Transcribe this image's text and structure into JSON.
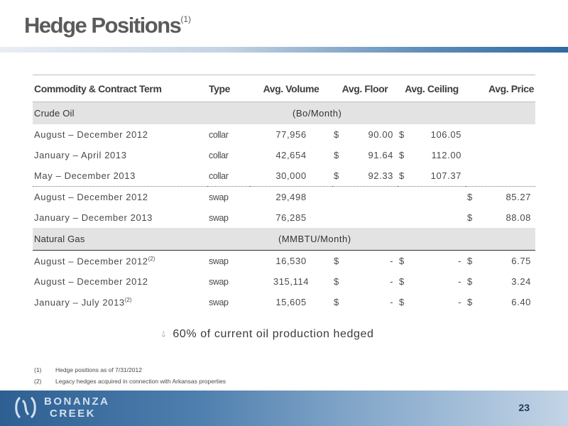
{
  "title": {
    "text": "Hedge Positions",
    "sup": "(1)"
  },
  "table": {
    "headers": [
      "Commodity & Contract Term",
      "Type",
      "Avg. Volume",
      "Avg. Floor",
      "Avg. Ceiling",
      "Avg. Price"
    ],
    "crude": {
      "label": "Crude Oil",
      "unit": "(Bo/Month)",
      "rows": [
        {
          "term": "August – December 2012",
          "type": "collar",
          "volume": "77,956",
          "floor": "90.00",
          "ceiling": "106.05",
          "price": ""
        },
        {
          "term": "January – April 2013",
          "type": "collar",
          "volume": "42,654",
          "floor": "91.64",
          "ceiling": "112.00",
          "price": ""
        },
        {
          "term": "May – December 2013",
          "type": "collar",
          "volume": "30,000",
          "floor": "92.33",
          "ceiling": "107.37",
          "price": ""
        },
        {
          "term": "August – December 2012",
          "type": "swap",
          "volume": "29,498",
          "floor": "",
          "ceiling": "",
          "price": "85.27"
        },
        {
          "term": "January – December 2013",
          "type": "swap",
          "volume": "76,285",
          "floor": "",
          "ceiling": "",
          "price": "88.08"
        }
      ]
    },
    "gas": {
      "label": "Natural Gas",
      "unit": "(MMBTU/Month)",
      "rows": [
        {
          "term": "August – December 2012",
          "term_sup": "(2)",
          "type": "swap",
          "volume": "16,530",
          "floor": "-",
          "ceiling": "-",
          "price": "6.75"
        },
        {
          "term": "August – December 2012",
          "term_sup": "",
          "type": "swap",
          "volume": "315,114",
          "floor": "-",
          "ceiling": "-",
          "price": "3.24"
        },
        {
          "term": "January – July 2013",
          "term_sup": "(2)",
          "type": "swap",
          "volume": "15,605",
          "floor": "-",
          "ceiling": "-",
          "price": "6.40"
        }
      ]
    },
    "currency_symbol": "$"
  },
  "bullet": {
    "icon": "oil-drop-icon",
    "text": "60% of current oil production hedged"
  },
  "footnotes": [
    {
      "num": "(1)",
      "text": "Hedge positions as of 7/31/2012"
    },
    {
      "num": "(2)",
      "text": "Legacy hedges acquired in connection with Arkansas properties"
    }
  ],
  "footer": {
    "logo_line1": "BONANZA",
    "logo_line2": "CREEK",
    "page_number": "23"
  },
  "colors": {
    "accent": "#2e6aa3",
    "section_bg": "#e3e3e3",
    "title": "#5b5b5b"
  }
}
